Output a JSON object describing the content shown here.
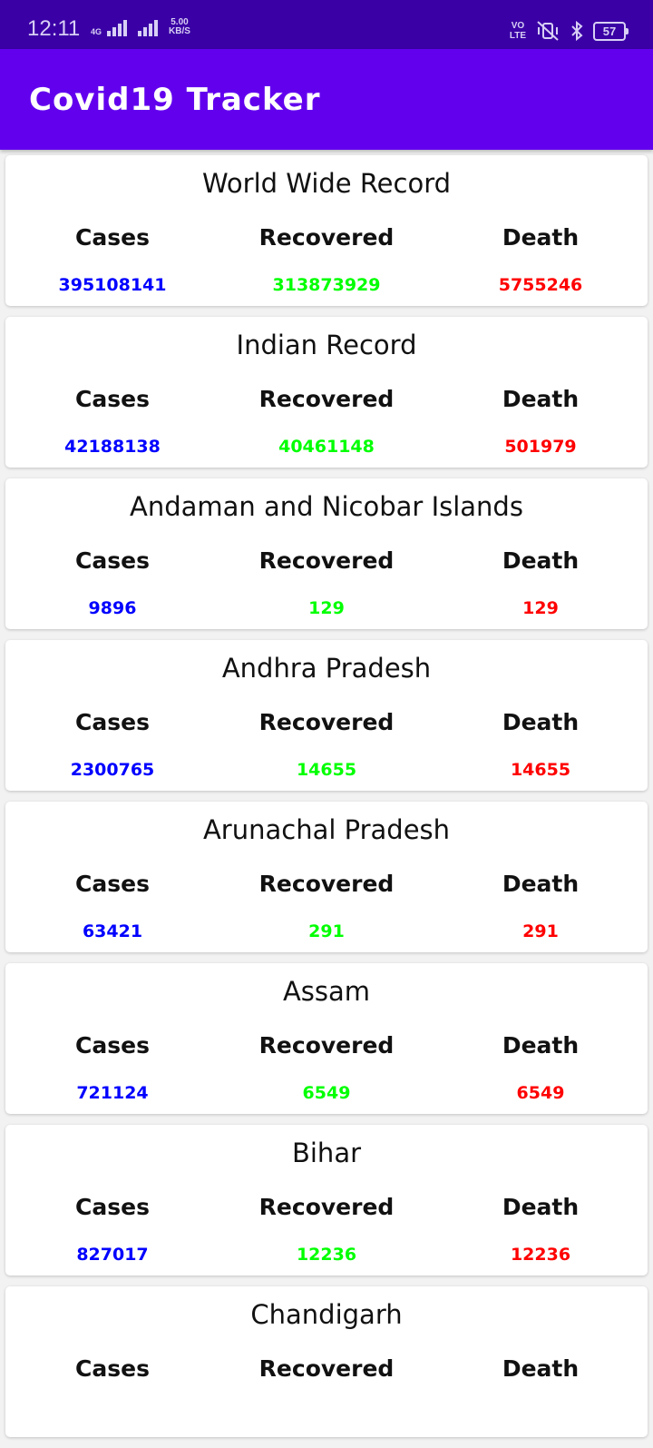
{
  "status_bar": {
    "time": "12:11",
    "network_type": "4G",
    "speed_value": "5.00",
    "speed_unit": "KB/S",
    "volte_top": "VO",
    "volte_bottom": "LTE",
    "battery": "57",
    "icons": [
      "signal-bars-icon",
      "mute-vibrate-icon",
      "bluetooth-icon",
      "battery-icon"
    ]
  },
  "app_bar": {
    "title": "Covid19 Tracker"
  },
  "colors": {
    "cases": "#0000ff",
    "recovered": "#00ff00",
    "death": "#ff0000",
    "app_bar": "#6200ee",
    "status_bar": "#3a00a5"
  },
  "labels": {
    "cases": "Cases",
    "recovered": "Recovered",
    "death": "Death"
  },
  "cards": [
    {
      "title": "World Wide Record",
      "cases": "395108141",
      "recovered": "313873929",
      "death": "5755246"
    },
    {
      "title": "Indian Record",
      "cases": "42188138",
      "recovered": "40461148",
      "death": "501979"
    },
    {
      "title": "Andaman and Nicobar Islands",
      "cases": "9896",
      "recovered": "129",
      "death": "129"
    },
    {
      "title": "Andhra Pradesh",
      "cases": "2300765",
      "recovered": "14655",
      "death": "14655"
    },
    {
      "title": "Arunachal Pradesh",
      "cases": "63421",
      "recovered": "291",
      "death": "291"
    },
    {
      "title": "Assam",
      "cases": "721124",
      "recovered": "6549",
      "death": "6549"
    },
    {
      "title": "Bihar",
      "cases": "827017",
      "recovered": "12236",
      "death": "12236"
    },
    {
      "title": "Chandigarh",
      "cases": "",
      "recovered": "",
      "death": ""
    }
  ]
}
